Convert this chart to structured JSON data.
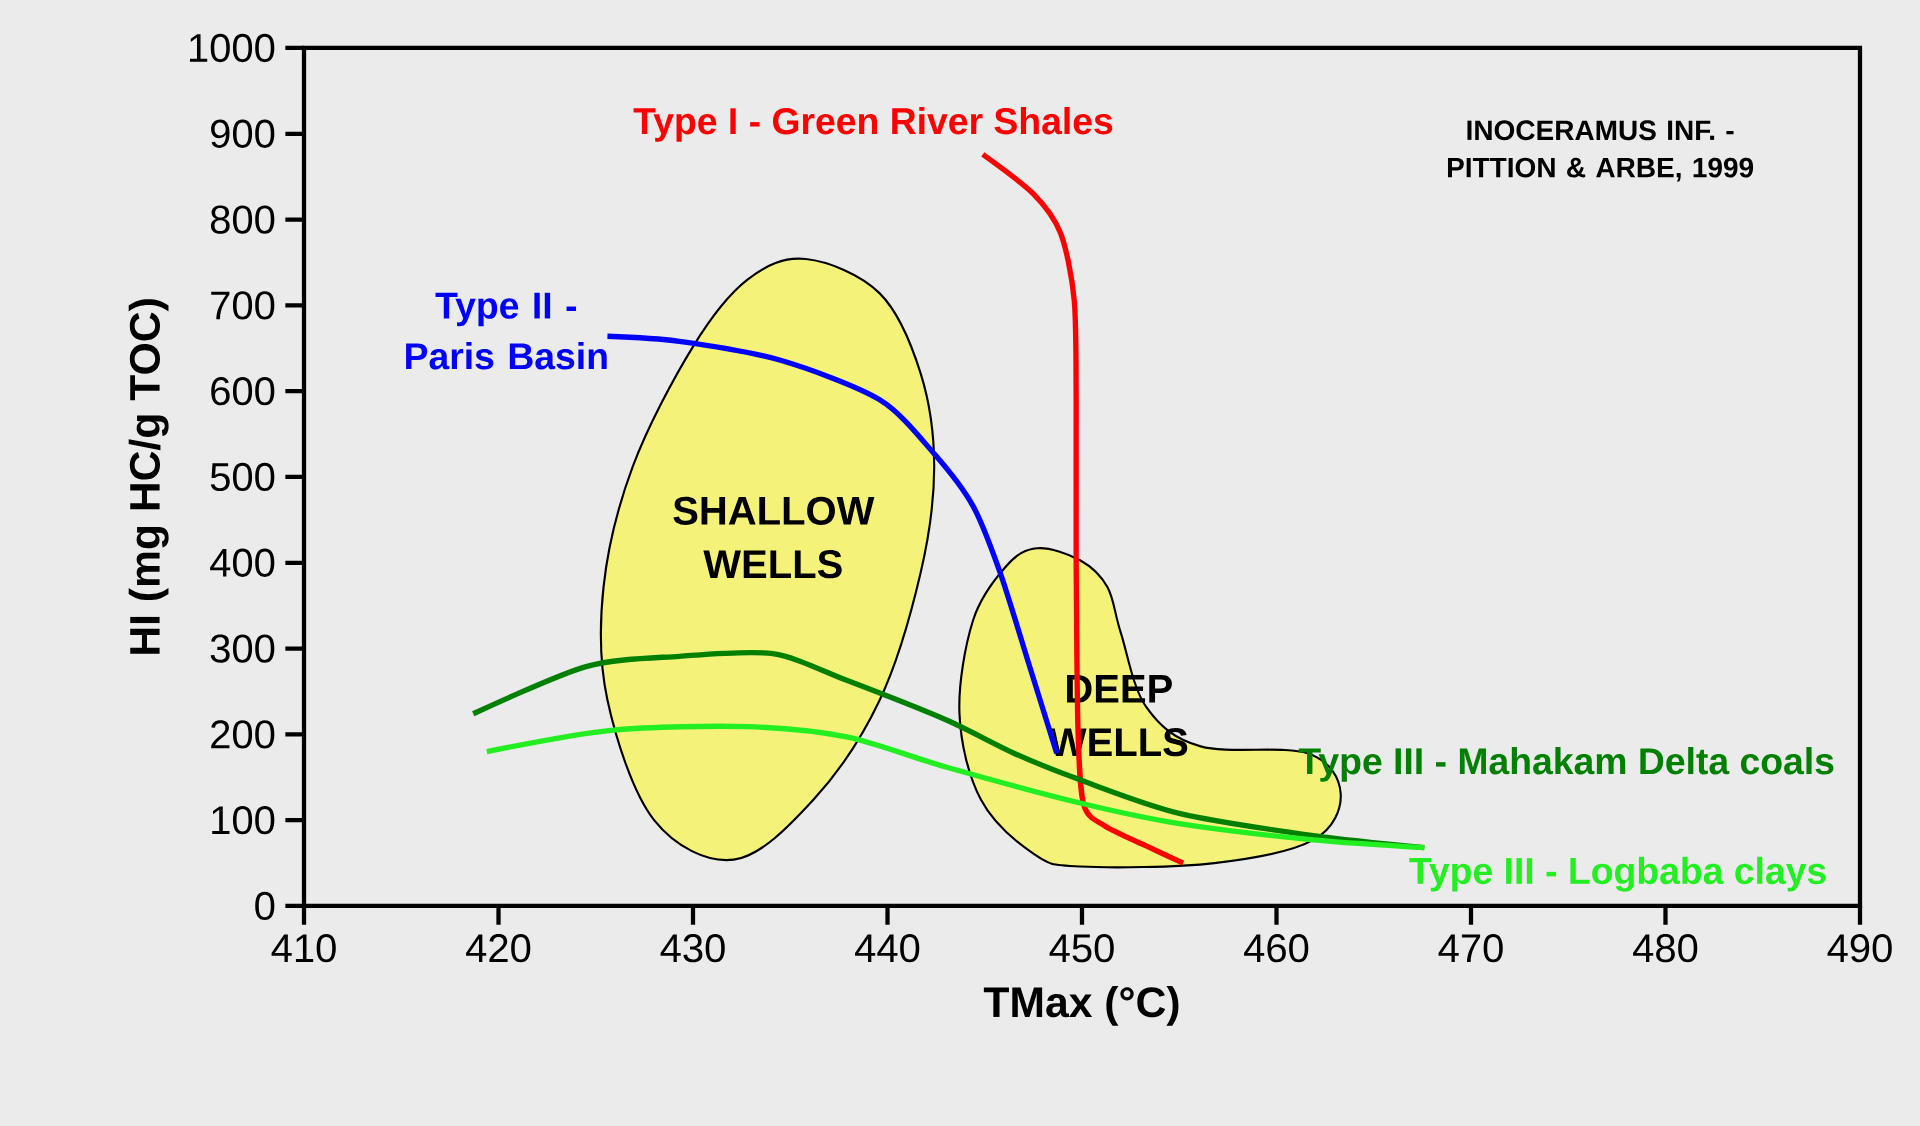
{
  "chart_data": {
    "type": "line",
    "xlabel": "TMax (°C)",
    "ylabel": "HI (mg HC/g TOC)",
    "xlim": [
      410,
      490
    ],
    "xticks": [
      410,
      420,
      430,
      440,
      450,
      460,
      470,
      480,
      490
    ],
    "ylim": [
      0,
      1000
    ],
    "yticks": [
      0,
      100,
      200,
      300,
      400,
      500,
      600,
      700,
      800,
      900,
      1000
    ],
    "annotations": [
      "INOCERAMUS INF. - PITTION & ARBE, 1999"
    ],
    "series": [
      {
        "name": "SHALLOW WELLS",
        "type": "area",
        "color": "#f5f27a",
        "x": [
          435.8,
          439.6,
          441.7,
          442.4,
          441.7,
          439.6,
          436.2,
          432.1,
          428.0,
          425.6,
          425.4,
          426.9,
          430.0,
          432.8
        ],
        "values": [
          754,
          714,
          621,
          512,
          388,
          240,
          124,
          54,
          100,
          240,
          372,
          512,
          652,
          730
        ]
      },
      {
        "name": "DEEP WELLS",
        "type": "area",
        "color": "#f5f27a",
        "x": [
          447.7,
          449.9,
          451.3,
          452.0,
          453.3,
          456.1,
          461.6,
          463.3,
          461.9,
          456.8,
          449.9,
          447.5,
          444.8,
          443.7,
          444.4,
          446.1
        ],
        "values": [
          417,
          403,
          372,
          318,
          232,
          186,
          178,
          131,
          77,
          50,
          46,
          61,
          124,
          224,
          333,
          396
        ]
      },
      {
        "name": "Type I - Green River Shales",
        "color": "#ff0000",
        "x": [
          444.9,
          447.5,
          448.9,
          449.6,
          449.7,
          449.7,
          449.8,
          450.1,
          451.2,
          453.3,
          455.2
        ],
        "values": [
          876,
          830,
          784,
          706,
          590,
          403,
          201,
          117,
          93,
          70,
          50
        ]
      },
      {
        "name": "Type II - Paris Basin",
        "color": "#0000ff",
        "x": [
          425.6,
          429.3,
          434.5,
          439.6,
          442.4,
          444.4,
          445.8,
          447.2,
          448.7
        ],
        "values": [
          664,
          658,
          636,
          590,
          527,
          466,
          388,
          287,
          178
        ]
      },
      {
        "name": "Type III - Mahakam Delta coals",
        "color": "#008000",
        "x": [
          418.7,
          424.5,
          429.3,
          434.1,
          437.9,
          443.0,
          446.5,
          449.9,
          455.0,
          461.9,
          467.6
        ],
        "values": [
          224,
          279,
          291,
          294,
          263,
          217,
          178,
          147,
          108,
          82,
          68
        ]
      },
      {
        "name": "Type III - Logbaba clays",
        "color": "#22ee22",
        "x": [
          419.4,
          425.9,
          432.8,
          437.9,
          443.0,
          449.9,
          455.0,
          461.9,
          467.6
        ],
        "values": [
          180,
          205,
          209,
          197,
          162,
          120,
          96,
          77,
          68
        ]
      }
    ]
  }
}
